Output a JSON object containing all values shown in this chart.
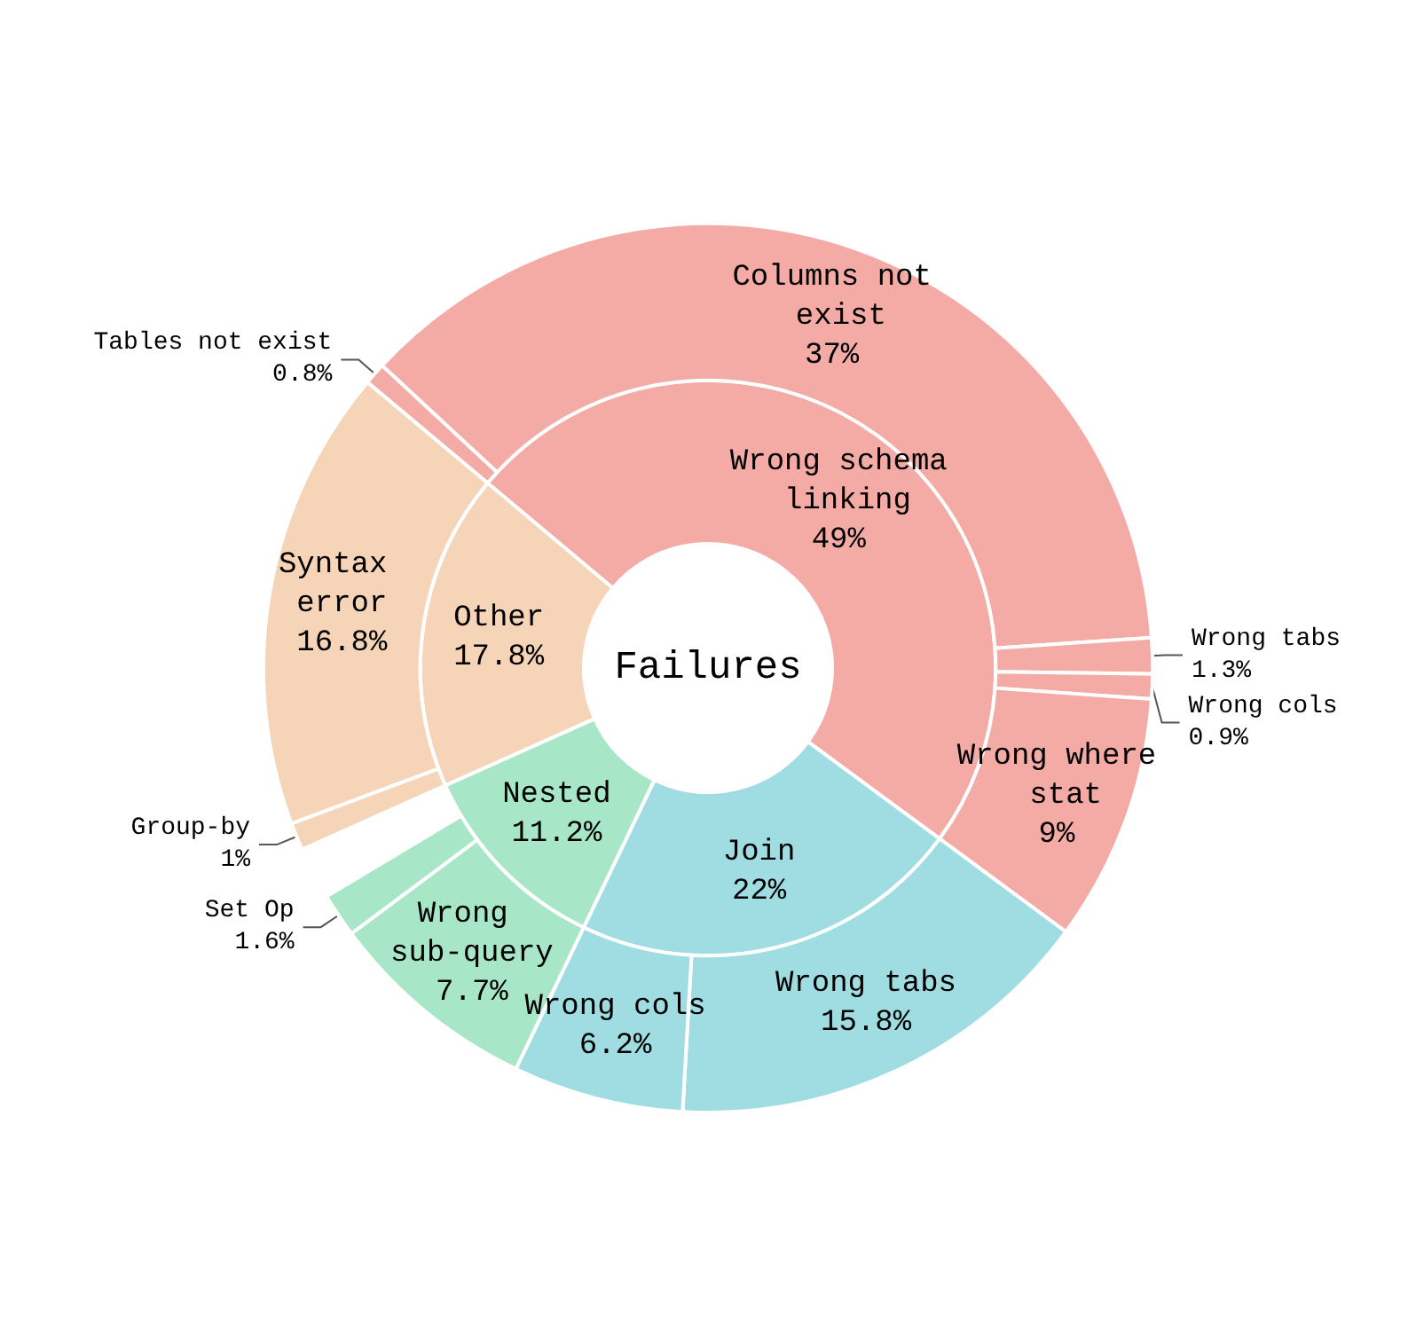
{
  "chart_data": {
    "type": "other",
    "title": "Failures",
    "categories": [
      "Wrong schema linking",
      "Tables not exist",
      "Columns not exist",
      "Wrong tabs",
      "Wrong cols",
      "Wrong where stat",
      "Join",
      "Wrong tabs",
      "Wrong cols",
      "Nested",
      "Wrong sub-query",
      "Set Op",
      "Other",
      "Group-by",
      "Syntax error"
    ],
    "series": [
      {
        "values": [
          49,
          null,
          null,
          null,
          null,
          null,
          22,
          null,
          null,
          11.2,
          null,
          null,
          17.8,
          null,
          null
        ],
        "value_labels": [
          "49%",
          null,
          null,
          null,
          null,
          null,
          "22%",
          null,
          null,
          "11.2%",
          null,
          null,
          "17.8%",
          null,
          null
        ],
        "colors": [
          "#f4aba5",
          null,
          null,
          null,
          null,
          null,
          "#a0dde3",
          null,
          null,
          "#a8e6c8",
          null,
          null,
          "#f6d4b8",
          null,
          null
        ]
      },
      {
        "values": [
          null,
          0.8,
          37,
          1.3,
          0.9,
          9,
          null,
          15.8,
          6.2,
          null,
          7.7,
          1.6,
          null,
          1,
          16.8
        ],
        "value_labels": [
          null,
          "0.8%",
          "37%",
          "1.3%",
          "0.9%",
          "9%",
          null,
          "15.8%",
          "6.2%",
          null,
          "7.7%",
          "1.6%",
          null,
          "1%",
          "16.8%"
        ],
        "colors": [
          null,
          "#f4aba5",
          "#f4aba5",
          "#f4aba5",
          "#f4aba5",
          "#f4aba5",
          null,
          "#a0dde3",
          "#a0dde3",
          null,
          "#a8e6c8",
          "#a8e6c8",
          null,
          "#f6d4b8",
          "#f6d4b8"
        ]
      }
    ]
  }
}
